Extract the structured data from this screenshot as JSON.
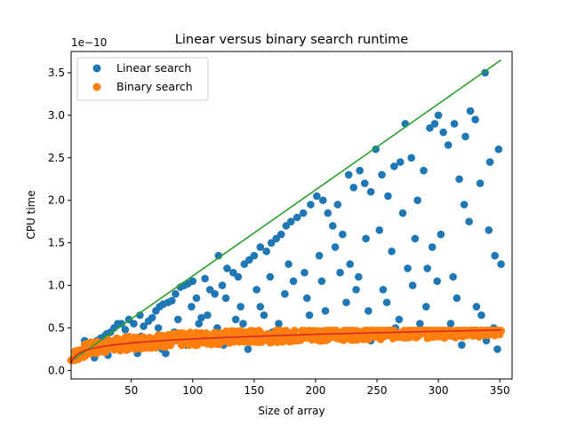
{
  "chart_data": {
    "type": "scatter",
    "title": "Linear versus binary search runtime",
    "xlabel": "Size of array",
    "ylabel": "CPU time",
    "offset_text": "1e−10",
    "scale": 1e-10,
    "xlim": [
      1,
      360
    ],
    "ylim": [
      -0.1,
      3.75
    ],
    "xticks": [
      50,
      100,
      150,
      200,
      250,
      300,
      350
    ],
    "yticks": [
      0.0,
      0.5,
      1.0,
      1.5,
      2.0,
      2.5,
      3.0,
      3.5
    ],
    "ytick_labels": [
      "0.0",
      "0.5",
      "1.0",
      "1.5",
      "2.0",
      "2.5",
      "3.0",
      "3.5"
    ],
    "legend": {
      "placement": "upper-left",
      "entries": [
        "Linear search",
        "Binary search"
      ]
    },
    "colors": {
      "linear": "#1f77b4",
      "binary": "#ff7f0e",
      "linear_fit": "#2ca02c",
      "binary_fit": "#d62728"
    },
    "series": [
      {
        "name": "Linear search",
        "points": [
          [
            5,
            0.15
          ],
          [
            10,
            0.17
          ],
          [
            14,
            0.2
          ],
          [
            18,
            0.25
          ],
          [
            22,
            0.35
          ],
          [
            25,
            0.38
          ],
          [
            28,
            0.4
          ],
          [
            30,
            0.43
          ],
          [
            33,
            0.45
          ],
          [
            36,
            0.5
          ],
          [
            39,
            0.55
          ],
          [
            42,
            0.55
          ],
          [
            45,
            0.48
          ],
          [
            48,
            0.6
          ],
          [
            52,
            0.55
          ],
          [
            57,
            0.65
          ],
          [
            60,
            0.52
          ],
          [
            64,
            0.58
          ],
          [
            67,
            0.62
          ],
          [
            70,
            0.7
          ],
          [
            73,
            0.75
          ],
          [
            76,
            0.78
          ],
          [
            80,
            0.8
          ],
          [
            83,
            0.82
          ],
          [
            86,
            0.9
          ],
          [
            90,
            0.98
          ],
          [
            93,
            1.0
          ],
          [
            96,
            1.02
          ],
          [
            100,
            1.05
          ],
          [
            103,
            0.85
          ],
          [
            107,
            0.62
          ],
          [
            110,
            1.08
          ],
          [
            114,
            0.95
          ],
          [
            118,
            0.9
          ],
          [
            121,
            1.35
          ],
          [
            124,
            1.0
          ],
          [
            128,
            1.2
          ],
          [
            133,
            1.15
          ],
          [
            137,
            1.1
          ],
          [
            142,
            1.25
          ],
          [
            146,
            1.3
          ],
          [
            150,
            1.35
          ],
          [
            155,
            1.45
          ],
          [
            160,
            1.4
          ],
          [
            164,
            1.5
          ],
          [
            168,
            1.55
          ],
          [
            172,
            1.6
          ],
          [
            176,
            1.7
          ],
          [
            180,
            1.75
          ],
          [
            185,
            1.8
          ],
          [
            190,
            1.85
          ],
          [
            196,
            1.95
          ],
          [
            201,
            2.05
          ],
          [
            206,
            2.0
          ],
          [
            210,
            1.85
          ],
          [
            214,
            1.7
          ],
          [
            218,
            1.95
          ],
          [
            222,
            1.6
          ],
          [
            227,
            2.3
          ],
          [
            231,
            2.15
          ],
          [
            236,
            2.35
          ],
          [
            240,
            2.2
          ],
          [
            245,
            2.1
          ],
          [
            249,
            2.6
          ],
          [
            254,
            2.3
          ],
          [
            259,
            2.05
          ],
          [
            264,
            2.4
          ],
          [
            269,
            2.45
          ],
          [
            273,
            2.9
          ],
          [
            278,
            2.5
          ],
          [
            283,
            2.0
          ],
          [
            288,
            2.35
          ],
          [
            293,
            2.85
          ],
          [
            297,
            2.9
          ],
          [
            300,
            3.0
          ],
          [
            304,
            2.8
          ],
          [
            308,
            2.65
          ],
          [
            313,
            2.9
          ],
          [
            317,
            2.25
          ],
          [
            322,
            2.75
          ],
          [
            326,
            3.05
          ],
          [
            330,
            2.95
          ],
          [
            334,
            2.2
          ],
          [
            338,
            3.5
          ],
          [
            342,
            2.45
          ],
          [
            346,
            1.35
          ],
          [
            349,
            2.6
          ],
          [
            351,
            1.25
          ],
          [
            20,
            0.15
          ],
          [
            35,
            0.3
          ],
          [
            55,
            0.2
          ],
          [
            65,
            0.35
          ],
          [
            75,
            0.25
          ],
          [
            85,
            0.45
          ],
          [
            95,
            0.3
          ],
          [
            105,
            0.55
          ],
          [
            115,
            0.4
          ],
          [
            125,
            0.3
          ],
          [
            135,
            0.6
          ],
          [
            145,
            0.25
          ],
          [
            155,
            0.75
          ],
          [
            165,
            0.45
          ],
          [
            175,
            0.9
          ],
          [
            185,
            0.35
          ],
          [
            195,
            0.65
          ],
          [
            205,
            1.05
          ],
          [
            215,
            0.4
          ],
          [
            225,
            0.8
          ],
          [
            235,
            1.1
          ],
          [
            245,
            0.35
          ],
          [
            255,
            0.95
          ],
          [
            265,
            0.5
          ],
          [
            275,
            1.2
          ],
          [
            285,
            0.55
          ],
          [
            295,
            1.45
          ],
          [
            305,
            0.4
          ],
          [
            315,
            0.85
          ],
          [
            325,
            1.75
          ],
          [
            335,
            0.65
          ],
          [
            345,
            0.5
          ],
          [
            12,
            0.35
          ],
          [
            27,
            0.22
          ],
          [
            43,
            0.33
          ],
          [
            58,
            0.4
          ],
          [
            72,
            0.5
          ],
          [
            88,
            0.6
          ],
          [
            99,
            0.75
          ],
          [
            112,
            0.65
          ],
          [
            127,
            0.85
          ],
          [
            139,
            0.75
          ],
          [
            152,
            0.95
          ],
          [
            163,
            1.1
          ],
          [
            178,
            1.25
          ],
          [
            191,
            1.15
          ],
          [
            203,
            1.35
          ],
          [
            216,
            1.45
          ],
          [
            228,
            1.25
          ],
          [
            241,
            1.55
          ],
          [
            252,
            1.65
          ],
          [
            262,
            1.4
          ],
          [
            271,
            1.85
          ],
          [
            281,
            1.55
          ],
          [
            291,
            1.2
          ],
          [
            302,
            1.6
          ],
          [
            312,
            1.1
          ],
          [
            321,
            1.95
          ],
          [
            331,
            0.75
          ],
          [
            341,
            1.65
          ],
          [
            16,
            0.28
          ],
          [
            31,
            0.18
          ],
          [
            47,
            0.25
          ],
          [
            62,
            0.3
          ],
          [
            78,
            0.2
          ],
          [
            92,
            0.4
          ],
          [
            108,
            0.35
          ],
          [
            120,
            0.5
          ],
          [
            131,
            0.45
          ],
          [
            141,
            0.55
          ],
          [
            158,
            0.65
          ],
          [
            170,
            0.55
          ],
          [
            182,
            1.05
          ],
          [
            193,
            0.85
          ],
          [
            208,
            0.7
          ],
          [
            220,
            1.15
          ],
          [
            233,
            0.95
          ],
          [
            243,
            0.7
          ],
          [
            258,
            0.8
          ],
          [
            268,
            0.6
          ],
          [
            279,
            1.0
          ],
          [
            290,
            0.75
          ],
          [
            299,
            1.05
          ],
          [
            310,
            0.55
          ],
          [
            319,
            0.3
          ],
          [
            328,
            0.45
          ],
          [
            339,
            0.35
          ],
          [
            348,
            0.25
          ]
        ]
      },
      {
        "name": "Binary search",
        "points": []
      }
    ],
    "fits": [
      {
        "name": "linear-fit",
        "from": [
          1,
          0.11
        ],
        "to": [
          351,
          3.65
        ]
      },
      {
        "name": "binary-fit",
        "a": 0.11,
        "b": 0.000785,
        "c": 0.08
      }
    ]
  }
}
